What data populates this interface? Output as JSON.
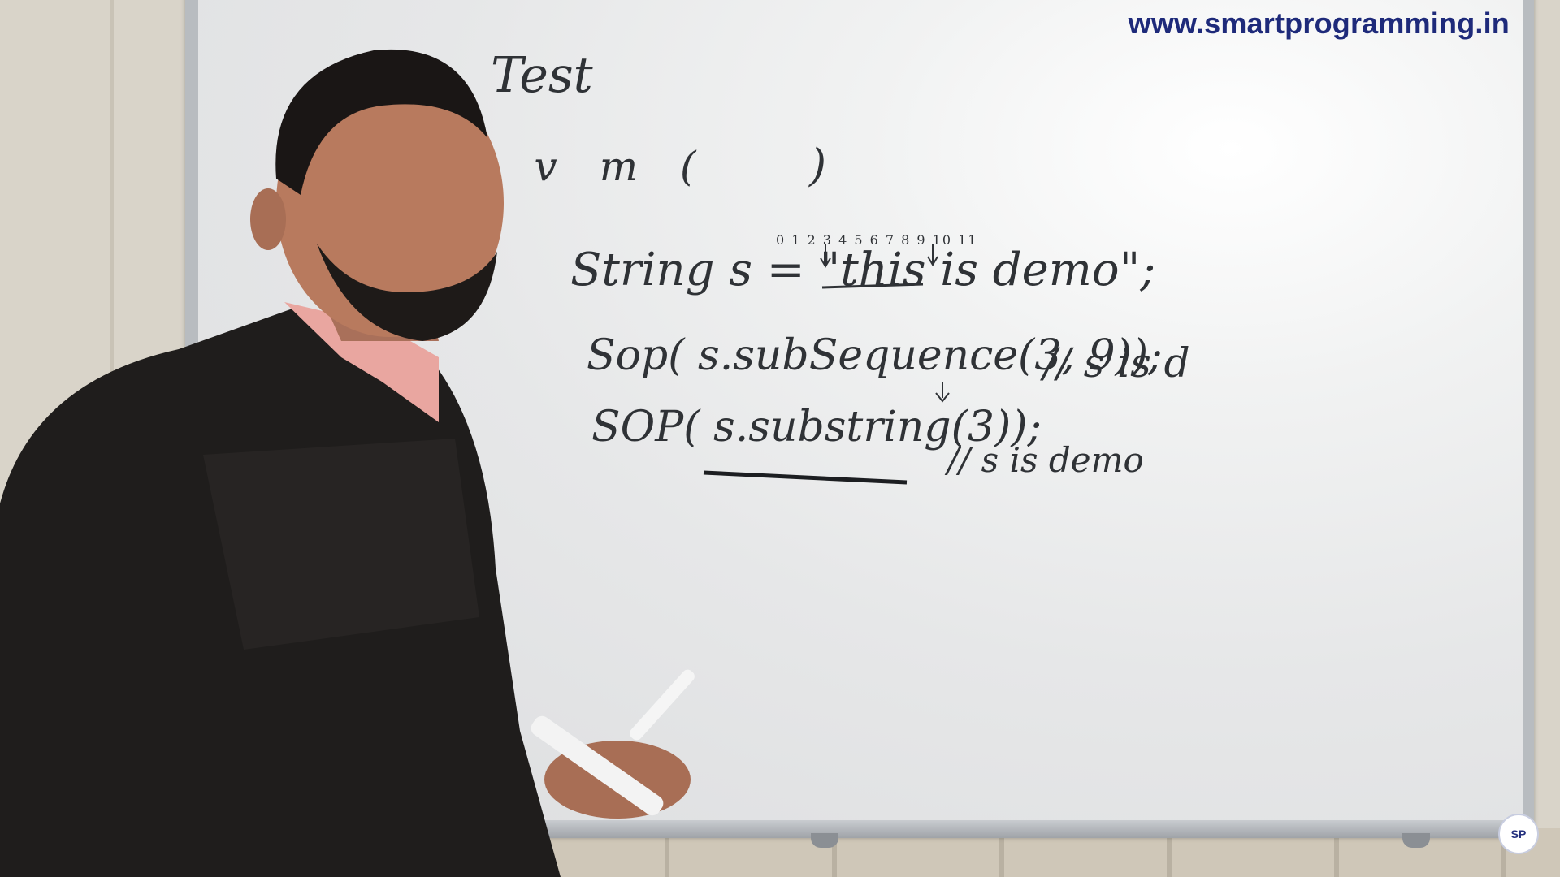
{
  "watermark": {
    "url": "www.smartprogramming.in"
  },
  "whiteboard": {
    "class_name": "Test",
    "main_method": "s v m (",
    "main_method_close": ")",
    "index_numbers": "0 1 2 3 4 5 6 7 8 9 10 11",
    "string_decl": "String s = \"this is demo\";",
    "line1_code": "Sop( s.subSequence(3, 9));",
    "line1_comment": "// s is d",
    "line2_code": "SOP( s.substring(3));",
    "line2_comment": "// s is demo"
  },
  "logo": {
    "text": "SP"
  }
}
